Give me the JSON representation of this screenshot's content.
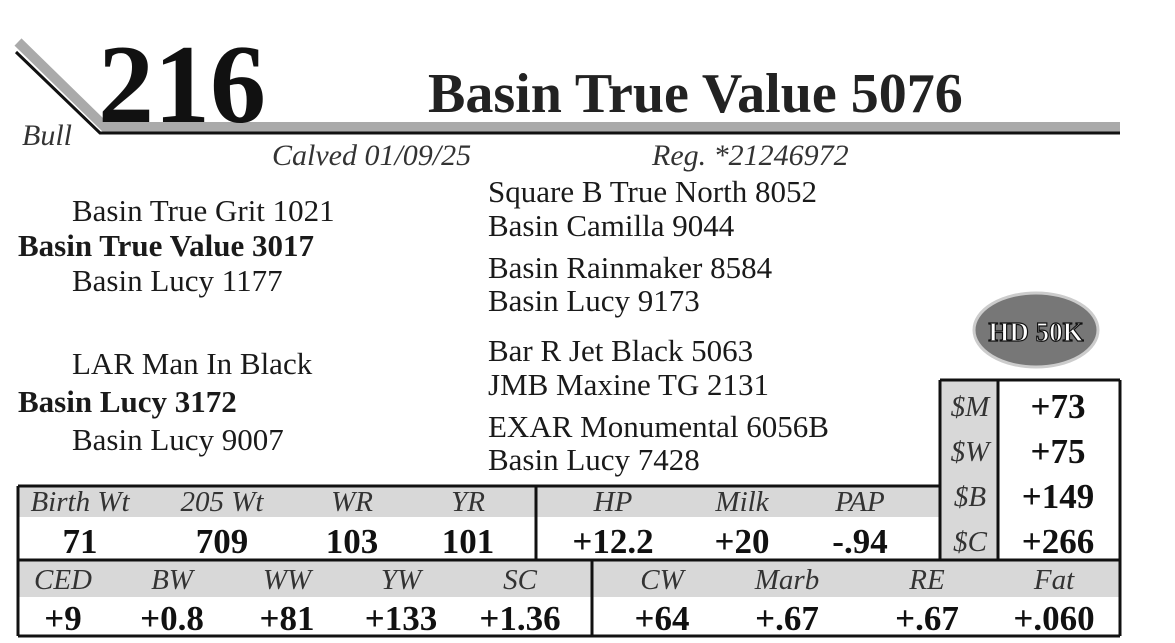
{
  "lot": "216",
  "sex": "Bull",
  "name": "Basin True Value 5076",
  "calved": "Calved 01/09/25",
  "reg": "Reg. *21246972",
  "pedigree": {
    "sire": {
      "sire": "Basin True Grit 1021",
      "name": "Basin True Value 3017",
      "dam": "Basin Lucy 1177"
    },
    "dam": {
      "sire": "LAR Man In Black",
      "name": "Basin Lucy 3172",
      "dam": "Basin Lucy 9007"
    },
    "grandparents": [
      "Square B True North 8052",
      "Basin Camilla 9044",
      "Basin Rainmaker 8584",
      "Basin Lucy 9173",
      "Bar R Jet Black 5063",
      "JMB Maxine TG 2131",
      "EXAR Monumental 6056B",
      "Basin Lucy 7428"
    ]
  },
  "badge": "HD 50K",
  "indexes": {
    "labels": [
      "$M",
      "$W",
      "$B",
      "$C"
    ],
    "values": [
      "+73",
      "+75",
      "+149",
      "+266"
    ]
  },
  "performance": {
    "headers": [
      "Birth Wt",
      "205 Wt",
      "WR",
      "YR",
      "HP",
      "Milk",
      "PAP"
    ],
    "values": [
      "71",
      "709",
      "103",
      "101",
      "+12.2",
      "+20",
      "-.94"
    ]
  },
  "epds": {
    "headers": [
      "CED",
      "BW",
      "WW",
      "YW",
      "SC",
      "CW",
      "Marb",
      "RE",
      "Fat"
    ],
    "values": [
      "+9",
      "+0.8",
      "+81",
      "+133",
      "+1.36",
      "+64",
      "+.67",
      "+.67",
      "+.060"
    ]
  }
}
